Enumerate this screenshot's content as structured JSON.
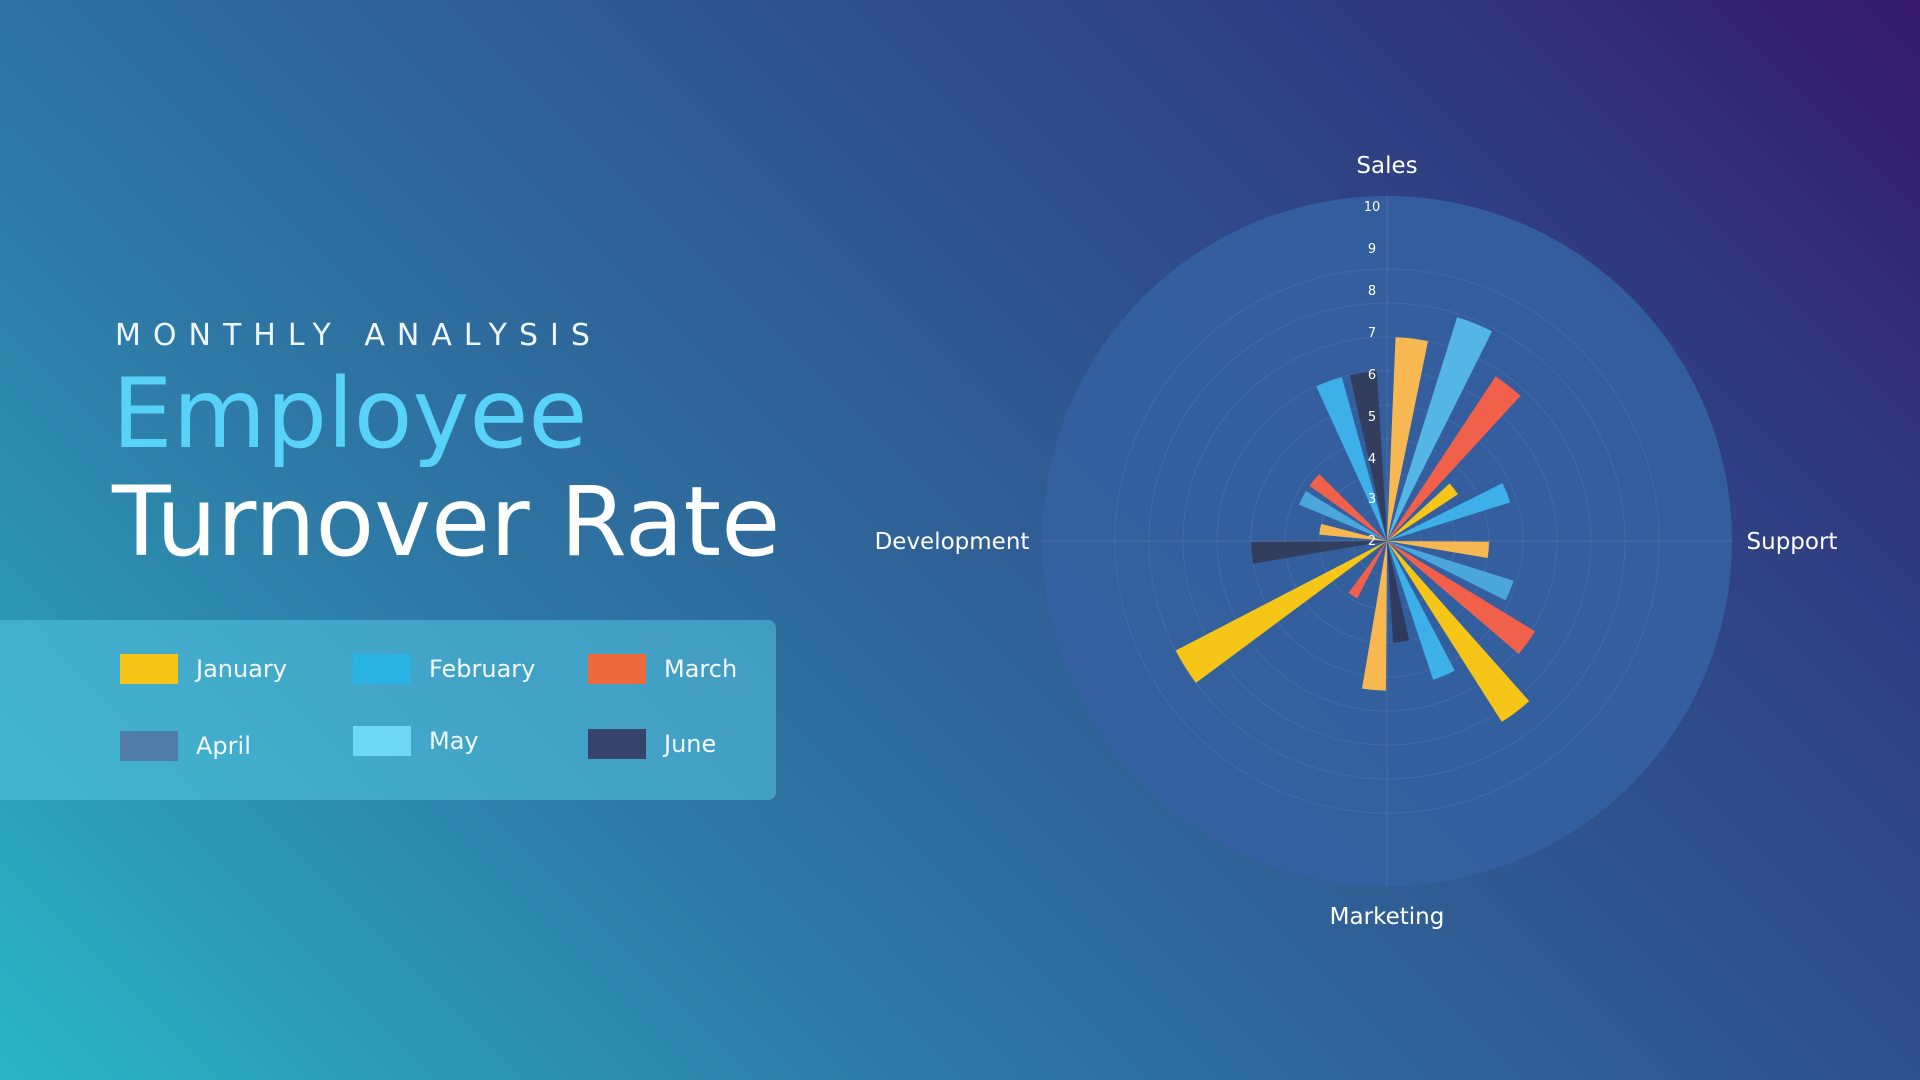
{
  "header": {
    "eyebrow": "MONTHLY ANALYSIS",
    "title_line1": "Employee",
    "title_line2": "Turnover Rate"
  },
  "legend": {
    "items": [
      {
        "label": "January",
        "color": "#f5c518"
      },
      {
        "label": "February",
        "color": "#2ab4e6"
      },
      {
        "label": "March",
        "color": "#ee6a3a"
      },
      {
        "label": "April",
        "color": "#4f7ca8"
      },
      {
        "label": "May",
        "color": "#6fd8f7"
      },
      {
        "label": "June",
        "color": "#36436a"
      }
    ]
  },
  "chart_data": {
    "type": "radial-bar",
    "categories": [
      "Sales",
      "Support",
      "Marketing",
      "Development"
    ],
    "radial_ticks": [
      "10",
      "9",
      "8",
      "7",
      "6",
      "5",
      "4",
      "3",
      "2"
    ],
    "rlim": [
      2,
      10
    ],
    "grid": true,
    "bars": [
      {
        "angle": 7,
        "value": 8.0,
        "color": "#f8b851"
      },
      {
        "angle": 22,
        "value": 8.9,
        "color": "#55b5e6"
      },
      {
        "angle": 38,
        "value": 7.8,
        "color": "#f1604a"
      },
      {
        "angle": 52,
        "value": 4.5,
        "color": "#f5c518"
      },
      {
        "angle": 68,
        "value": 5.8,
        "color": "#3db0ea"
      },
      {
        "angle": 95,
        "value": 5.0,
        "color": "#f8b851"
      },
      {
        "angle": 112,
        "value": 5.9,
        "color": "#4ba6db"
      },
      {
        "angle": 126,
        "value": 7.1,
        "color": "#f1604a"
      },
      {
        "angle": 143,
        "value": 8.3,
        "color": "#f5c518"
      },
      {
        "angle": 157,
        "value": 6.3,
        "color": "#3db0ea"
      },
      {
        "angle": 172,
        "value": 5.0,
        "color": "#2e3b5e"
      },
      {
        "angle": 185,
        "value": 6.4,
        "color": "#f8b851"
      },
      {
        "angle": 212,
        "value": 3.9,
        "color": "#f1604a"
      },
      {
        "angle": 238,
        "value": 9.0,
        "color": "#f5c518"
      },
      {
        "angle": 265,
        "value": 6.0,
        "color": "#333e5e"
      },
      {
        "angle": 280,
        "value": 4.0,
        "color": "#f8b851"
      },
      {
        "angle": 297,
        "value": 4.8,
        "color": "#4ba6db"
      },
      {
        "angle": 310,
        "value": 4.8,
        "color": "#f1604a"
      },
      {
        "angle": 340,
        "value": 7.0,
        "color": "#3db0ea"
      },
      {
        "angle": 352,
        "value": 7.0,
        "color": "#333e5e"
      }
    ]
  }
}
